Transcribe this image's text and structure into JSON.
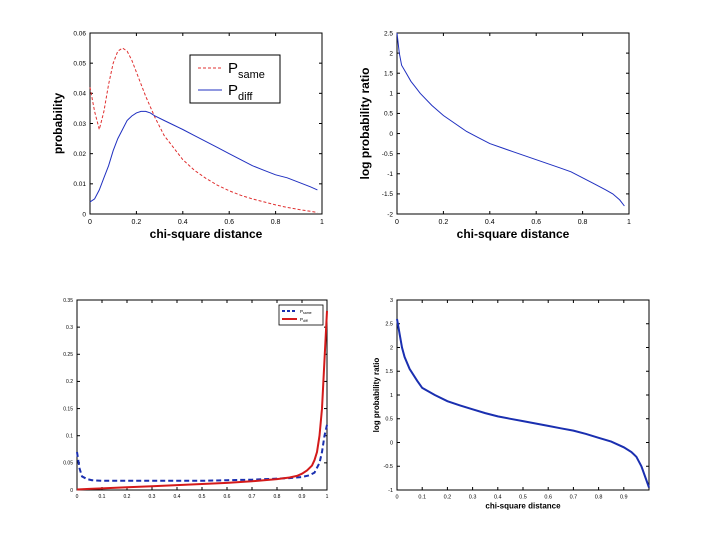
{
  "chart_data": [
    {
      "type": "line",
      "title": "",
      "xlabel": "chi-square distance",
      "ylabel": "probability",
      "xlim": [
        0,
        1
      ],
      "ylim": [
        0,
        0.06
      ],
      "xticks": [
        "0",
        "0.2",
        "0.4",
        "0.6",
        "0.8",
        "1"
      ],
      "yticks": [
        "0",
        "0.01",
        "0.02",
        "0.03",
        "0.04",
        "0.05",
        "0.06"
      ],
      "legend": [
        "P_same",
        "P_diff"
      ],
      "legend_position": "top-center",
      "series": [
        {
          "name": "P_same",
          "color": "#e03030",
          "style": "dashed",
          "x": [
            0,
            0.02,
            0.04,
            0.06,
            0.08,
            0.1,
            0.12,
            0.14,
            0.16,
            0.18,
            0.2,
            0.24,
            0.28,
            0.32,
            0.36,
            0.4,
            0.45,
            0.5,
            0.55,
            0.6,
            0.65,
            0.7,
            0.75,
            0.8,
            0.85,
            0.9,
            0.95,
            0.98
          ],
          "y": [
            0.042,
            0.034,
            0.028,
            0.034,
            0.043,
            0.05,
            0.054,
            0.055,
            0.054,
            0.051,
            0.047,
            0.039,
            0.032,
            0.026,
            0.022,
            0.018,
            0.0145,
            0.0118,
            0.0095,
            0.0077,
            0.0062,
            0.005,
            0.004,
            0.003,
            0.0022,
            0.0015,
            0.0009,
            0.0005
          ]
        },
        {
          "name": "P_diff",
          "color": "#2030c0",
          "style": "solid",
          "x": [
            0,
            0.02,
            0.04,
            0.06,
            0.08,
            0.1,
            0.12,
            0.14,
            0.16,
            0.18,
            0.2,
            0.22,
            0.24,
            0.26,
            0.28,
            0.32,
            0.36,
            0.4,
            0.45,
            0.5,
            0.55,
            0.6,
            0.65,
            0.7,
            0.75,
            0.8,
            0.85,
            0.9,
            0.95,
            0.98
          ],
          "y": [
            0.004,
            0.005,
            0.008,
            0.012,
            0.016,
            0.021,
            0.025,
            0.028,
            0.031,
            0.0325,
            0.0335,
            0.034,
            0.034,
            0.0335,
            0.0325,
            0.031,
            0.0295,
            0.028,
            0.026,
            0.024,
            0.022,
            0.02,
            0.018,
            0.016,
            0.0145,
            0.013,
            0.012,
            0.0105,
            0.009,
            0.008
          ]
        }
      ]
    },
    {
      "type": "line",
      "title": "",
      "xlabel": "chi-square distance",
      "ylabel": "log probability ratio",
      "xlim": [
        0,
        1
      ],
      "ylim": [
        -2,
        2.5
      ],
      "xticks": [
        "0",
        "0.2",
        "0.4",
        "0.6",
        "0.8",
        "1"
      ],
      "yticks": [
        "-2",
        "-1.5",
        "-1",
        "-0.5",
        "0",
        "0.5",
        "1",
        "1.5",
        "2",
        "2.5"
      ],
      "series": [
        {
          "name": "log ratio",
          "color": "#2030c0",
          "style": "solid",
          "x": [
            0,
            0.01,
            0.02,
            0.04,
            0.06,
            0.08,
            0.1,
            0.15,
            0.2,
            0.25,
            0.3,
            0.35,
            0.4,
            0.45,
            0.5,
            0.55,
            0.6,
            0.65,
            0.7,
            0.75,
            0.8,
            0.85,
            0.9,
            0.93,
            0.96,
            0.98
          ],
          "y": [
            2.5,
            2.0,
            1.7,
            1.5,
            1.3,
            1.15,
            1.0,
            0.7,
            0.45,
            0.25,
            0.05,
            -0.1,
            -0.25,
            -0.35,
            -0.45,
            -0.55,
            -0.65,
            -0.75,
            -0.85,
            -0.95,
            -1.1,
            -1.25,
            -1.4,
            -1.5,
            -1.65,
            -1.8
          ]
        }
      ]
    },
    {
      "type": "line",
      "title": "",
      "xlabel": "",
      "ylabel": "",
      "xlim": [
        0,
        1
      ],
      "ylim": [
        0,
        0.35
      ],
      "xticks": [
        "0",
        "0.1",
        "0.2",
        "0.3",
        "0.4",
        "0.5",
        "0.6",
        "0.7",
        "0.8",
        "0.9",
        "1"
      ],
      "yticks": [
        "0",
        "0.05",
        "0.1",
        "0.15",
        "0.2",
        "0.25",
        "0.3",
        "0.35"
      ],
      "legend": [
        "P_same",
        "P_diff"
      ],
      "legend_position": "top-right",
      "series": [
        {
          "name": "P_same",
          "color": "#1a2fb0",
          "style": "dashed",
          "x": [
            0,
            0.01,
            0.02,
            0.04,
            0.06,
            0.1,
            0.2,
            0.3,
            0.4,
            0.5,
            0.6,
            0.7,
            0.8,
            0.85,
            0.9,
            0.93,
            0.95,
            0.97,
            0.98,
            0.99,
            1.0
          ],
          "y": [
            0.07,
            0.04,
            0.025,
            0.02,
            0.018,
            0.017,
            0.017,
            0.017,
            0.017,
            0.017,
            0.018,
            0.019,
            0.021,
            0.022,
            0.024,
            0.027,
            0.032,
            0.05,
            0.07,
            0.1,
            0.12
          ]
        },
        {
          "name": "P_diff",
          "color": "#d41a1a",
          "style": "solid",
          "x": [
            0,
            0.05,
            0.1,
            0.2,
            0.3,
            0.4,
            0.5,
            0.6,
            0.7,
            0.8,
            0.85,
            0.88,
            0.9,
            0.92,
            0.94,
            0.95,
            0.96,
            0.97,
            0.98,
            0.99,
            1.0
          ],
          "y": [
            0.001,
            0.002,
            0.003,
            0.005,
            0.007,
            0.009,
            0.011,
            0.013,
            0.016,
            0.02,
            0.023,
            0.026,
            0.03,
            0.036,
            0.045,
            0.055,
            0.07,
            0.1,
            0.15,
            0.24,
            0.33
          ]
        }
      ]
    },
    {
      "type": "line",
      "title": "",
      "xlabel": "chi-square distance",
      "ylabel": "log probability ratio",
      "xlim": [
        0,
        1
      ],
      "ylim": [
        -1,
        3
      ],
      "xticks": [
        "0",
        "0.1",
        "0.2",
        "0.3",
        "0.4",
        "0.5",
        "0.6",
        "0.7",
        "0.8",
        "0.9"
      ],
      "yticks": [
        "-1",
        "-0.5",
        "0",
        "0.5",
        "1",
        "1.5",
        "2",
        "2.5",
        "3"
      ],
      "series": [
        {
          "name": "log ratio",
          "color": "#1a2fb0",
          "style": "solid",
          "x": [
            0,
            0.01,
            0.02,
            0.03,
            0.05,
            0.08,
            0.1,
            0.15,
            0.2,
            0.25,
            0.3,
            0.35,
            0.4,
            0.45,
            0.5,
            0.55,
            0.6,
            0.65,
            0.7,
            0.75,
            0.8,
            0.85,
            0.9,
            0.93,
            0.95,
            0.97,
            0.99,
            1.0
          ],
          "y": [
            2.6,
            2.3,
            2.0,
            1.8,
            1.55,
            1.3,
            1.15,
            1.0,
            0.87,
            0.78,
            0.7,
            0.62,
            0.55,
            0.5,
            0.45,
            0.4,
            0.35,
            0.3,
            0.25,
            0.18,
            0.1,
            0.02,
            -0.1,
            -0.2,
            -0.3,
            -0.5,
            -0.8,
            -0.95
          ]
        }
      ]
    }
  ]
}
